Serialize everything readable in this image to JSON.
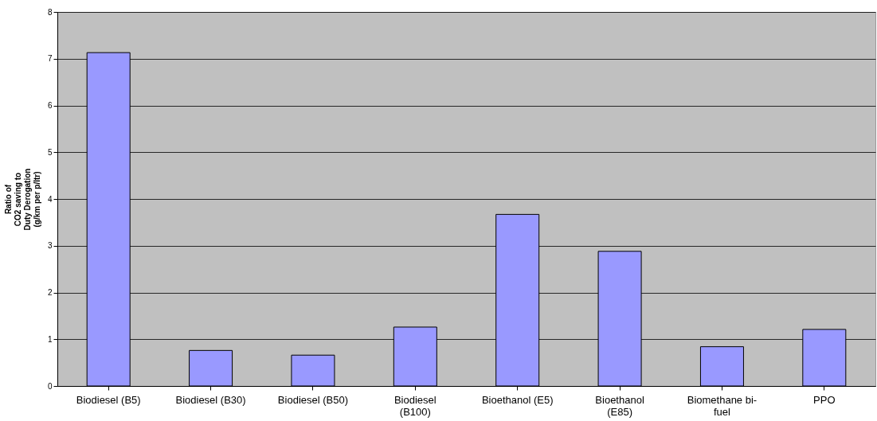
{
  "chart_data": {
    "type": "bar",
    "ylabel": "Ratio of\nCO2 saving to\nDuty Derogation\n(g/km per p/ltr)",
    "categories": [
      "Biodiesel (B5)",
      "Biodiesel (B30)",
      "Biodiesel (B50)",
      "Biodiesel (B100)",
      "Bioethanol (E5)",
      "Bioethanol (E85)",
      "Biomethane bi-fuel",
      "PPO"
    ],
    "values": [
      7.13,
      0.76,
      0.66,
      1.26,
      3.67,
      2.88,
      0.84,
      1.21
    ],
    "color": "#9999ff",
    "ylim": [
      0,
      8
    ],
    "yticks": [
      0,
      1,
      2,
      3,
      4,
      5,
      6,
      7,
      8
    ],
    "grid": "y"
  }
}
